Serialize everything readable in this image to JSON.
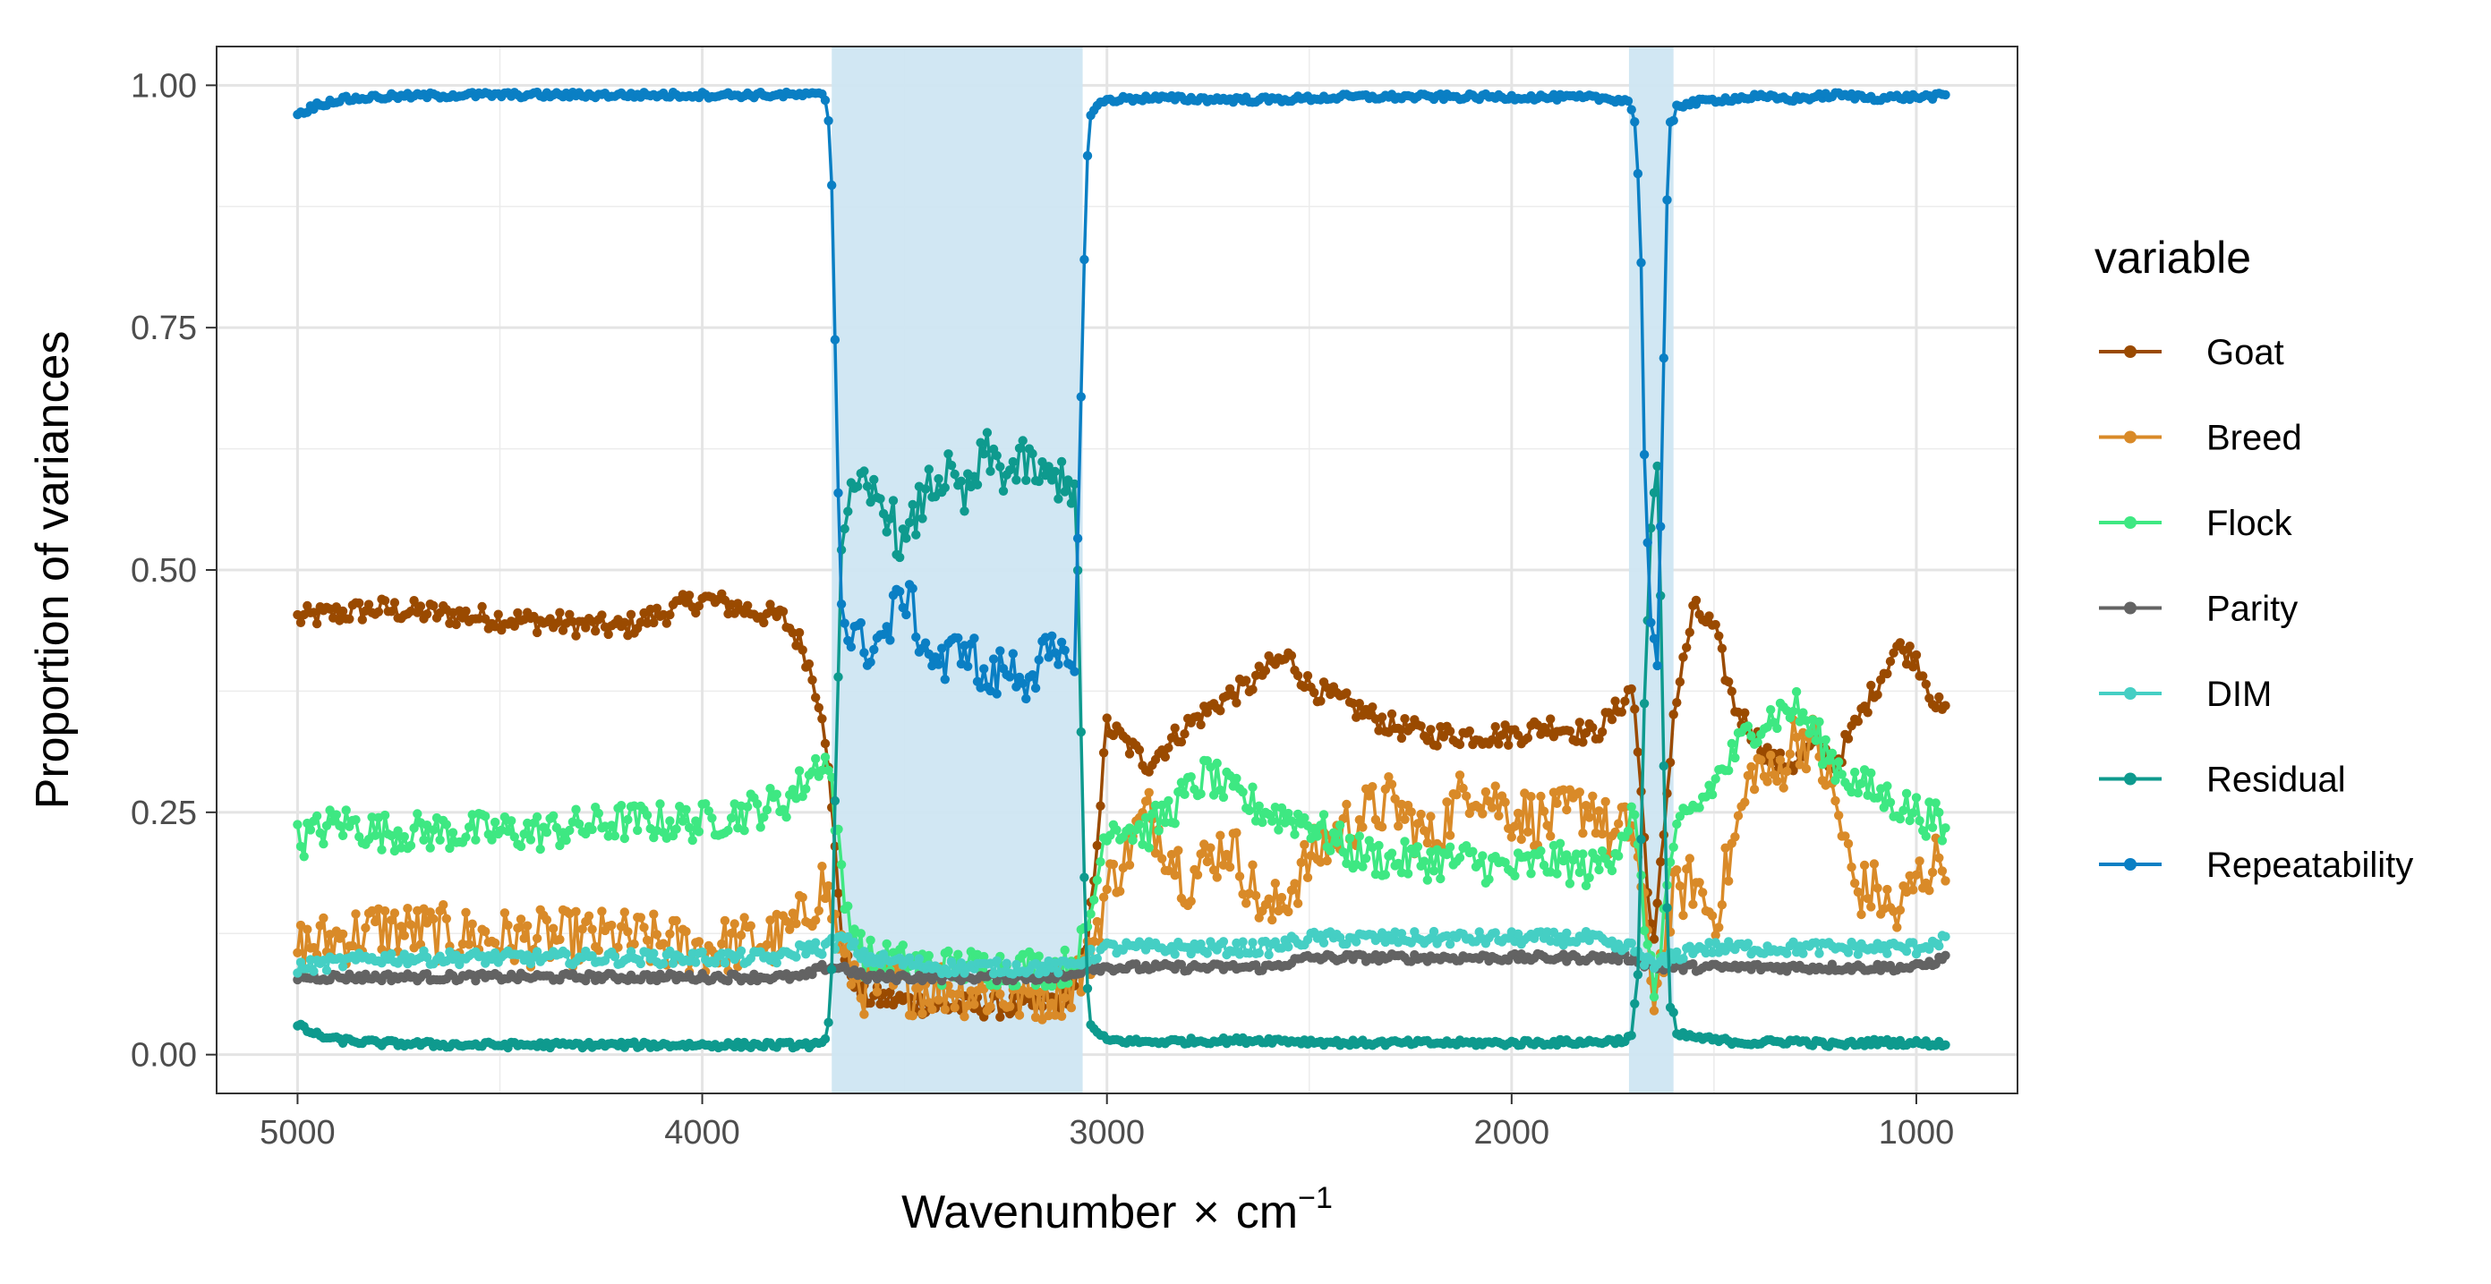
{
  "chart_data": {
    "type": "line",
    "title": "",
    "xlabel_main": "Wavenumber",
    "xlabel_times": "×",
    "xlabel_unit": "cm",
    "xlabel_sup": "−1",
    "ylabel": "Proportion of variances",
    "xlim": [
      5200,
      750
    ],
    "x_reversed": true,
    "ylim": [
      -0.04,
      1.04
    ],
    "x_ticks": [
      5000,
      4000,
      3000,
      2000,
      1000
    ],
    "x_tick_labels": [
      "5000",
      "4000",
      "3000",
      "2000",
      "1000"
    ],
    "y_ticks": [
      0,
      0.25,
      0.5,
      0.75,
      1.0
    ],
    "y_tick_labels": [
      "0.00",
      "0.25",
      "0.50",
      "0.75",
      "1.00"
    ],
    "grid": true,
    "legend_position": "right",
    "legend_title": "variable",
    "shaded_regions": [
      {
        "from": 3680,
        "to": 3060,
        "color": "#cfe6f2"
      },
      {
        "from": 1710,
        "to": 1600,
        "color": "#cfe6f2"
      }
    ],
    "x_range_data": [
      5000,
      926
    ],
    "series": [
      {
        "name": "Goat",
        "color": "#9a4a00",
        "x": [
          5000,
          4800,
          4500,
          4200,
          4000,
          3800,
          3750,
          3700,
          3650,
          3600,
          3400,
          3200,
          3100,
          3050,
          3000,
          2900,
          2800,
          2700,
          2650,
          2600,
          2550,
          2500,
          2400,
          2300,
          2200,
          2000,
          1900,
          1800,
          1750,
          1700,
          1650,
          1600,
          1550,
          1500,
          1450,
          1400,
          1350,
          1300,
          1250,
          1200,
          1100,
          1050,
          1000,
          950,
          926
        ],
        "values": [
          0.45,
          0.46,
          0.45,
          0.44,
          0.47,
          0.45,
          0.42,
          0.35,
          0.1,
          0.06,
          0.05,
          0.05,
          0.06,
          0.1,
          0.34,
          0.3,
          0.34,
          0.37,
          0.38,
          0.4,
          0.41,
          0.38,
          0.36,
          0.34,
          0.33,
          0.33,
          0.34,
          0.33,
          0.35,
          0.38,
          0.1,
          0.35,
          0.46,
          0.44,
          0.36,
          0.33,
          0.3,
          0.3,
          0.32,
          0.3,
          0.38,
          0.42,
          0.41,
          0.36,
          0.35
        ]
      },
      {
        "name": "Breed",
        "color": "#d98a28",
        "x": [
          5000,
          4800,
          4500,
          4200,
          4000,
          3800,
          3750,
          3700,
          3650,
          3600,
          3400,
          3200,
          3100,
          3050,
          3000,
          2900,
          2800,
          2700,
          2600,
          2500,
          2400,
          2300,
          2200,
          2100,
          2000,
          1900,
          1800,
          1750,
          1700,
          1650,
          1600,
          1550,
          1500,
          1450,
          1400,
          1350,
          1300,
          1250,
          1200,
          1150,
          1100,
          1050,
          1000,
          950,
          926
        ],
        "values": [
          0.11,
          0.13,
          0.12,
          0.12,
          0.11,
          0.12,
          0.14,
          0.18,
          0.1,
          0.07,
          0.07,
          0.06,
          0.07,
          0.09,
          0.17,
          0.25,
          0.18,
          0.22,
          0.14,
          0.2,
          0.24,
          0.26,
          0.22,
          0.28,
          0.25,
          0.24,
          0.26,
          0.22,
          0.24,
          0.06,
          0.16,
          0.18,
          0.14,
          0.22,
          0.3,
          0.28,
          0.33,
          0.32,
          0.26,
          0.17,
          0.17,
          0.14,
          0.18,
          0.2,
          0.21
        ]
      },
      {
        "name": "Flock",
        "color": "#3ee882",
        "x": [
          5000,
          4900,
          4800,
          4600,
          4400,
          4200,
          4000,
          3900,
          3800,
          3750,
          3700,
          3680,
          3650,
          3600,
          3400,
          3200,
          3100,
          3050,
          3000,
          2900,
          2800,
          2750,
          2700,
          2600,
          2500,
          2400,
          2300,
          2200,
          2100,
          2000,
          1900,
          1800,
          1750,
          1700,
          1650,
          1600,
          1550,
          1500,
          1450,
          1400,
          1350,
          1300,
          1250,
          1200,
          1150,
          1100,
          1050,
          1000,
          950,
          926
        ],
        "values": [
          0.22,
          0.24,
          0.23,
          0.23,
          0.23,
          0.24,
          0.24,
          0.25,
          0.26,
          0.28,
          0.31,
          0.28,
          0.16,
          0.1,
          0.09,
          0.09,
          0.09,
          0.12,
          0.24,
          0.23,
          0.27,
          0.29,
          0.27,
          0.25,
          0.24,
          0.21,
          0.2,
          0.2,
          0.2,
          0.19,
          0.2,
          0.19,
          0.21,
          0.25,
          0.06,
          0.22,
          0.25,
          0.28,
          0.31,
          0.34,
          0.35,
          0.36,
          0.33,
          0.3,
          0.28,
          0.27,
          0.26,
          0.25,
          0.24,
          0.22
        ]
      },
      {
        "name": "Parity",
        "color": "#636363",
        "x": [
          5000,
          4800,
          4600,
          4400,
          4200,
          4000,
          3900,
          3800,
          3750,
          3700,
          3650,
          3600,
          3400,
          3200,
          3100,
          3050,
          3000,
          2900,
          2800,
          2700,
          2600,
          2500,
          2400,
          2300,
          2200,
          2100,
          2000,
          1900,
          1800,
          1750,
          1700,
          1650,
          1600,
          1550,
          1500,
          1450,
          1400,
          1300,
          1200,
          1100,
          1000,
          926
        ],
        "values": [
          0.08,
          0.08,
          0.08,
          0.08,
          0.08,
          0.08,
          0.08,
          0.08,
          0.08,
          0.09,
          0.09,
          0.08,
          0.08,
          0.08,
          0.08,
          0.09,
          0.09,
          0.09,
          0.09,
          0.09,
          0.09,
          0.1,
          0.1,
          0.1,
          0.1,
          0.1,
          0.1,
          0.1,
          0.1,
          0.1,
          0.1,
          0.09,
          0.09,
          0.09,
          0.09,
          0.09,
          0.09,
          0.09,
          0.09,
          0.09,
          0.09,
          0.1
        ]
      },
      {
        "name": "DIM",
        "color": "#45cfc4",
        "x": [
          5000,
          4800,
          4600,
          4400,
          4200,
          4000,
          3900,
          3800,
          3750,
          3700,
          3650,
          3600,
          3400,
          3200,
          3100,
          3050,
          3000,
          2900,
          2800,
          2700,
          2600,
          2500,
          2400,
          2300,
          2200,
          2100,
          2000,
          1900,
          1800,
          1750,
          1700,
          1650,
          1600,
          1550,
          1500,
          1450,
          1400,
          1300,
          1200,
          1100,
          1000,
          926
        ],
        "values": [
          0.09,
          0.1,
          0.1,
          0.1,
          0.1,
          0.1,
          0.1,
          0.1,
          0.11,
          0.11,
          0.12,
          0.1,
          0.09,
          0.09,
          0.09,
          0.1,
          0.11,
          0.11,
          0.11,
          0.11,
          0.11,
          0.12,
          0.12,
          0.12,
          0.12,
          0.12,
          0.12,
          0.12,
          0.12,
          0.11,
          0.11,
          0.09,
          0.1,
          0.11,
          0.11,
          0.11,
          0.11,
          0.11,
          0.11,
          0.11,
          0.11,
          0.12
        ]
      },
      {
        "name": "Residual",
        "color": "#0e9a8e",
        "x": [
          5000,
          4950,
          4900,
          4800,
          4600,
          4400,
          4200,
          4000,
          3800,
          3700,
          3690,
          3680,
          3670,
          3660,
          3650,
          3600,
          3550,
          3500,
          3450,
          3400,
          3350,
          3300,
          3250,
          3200,
          3150,
          3100,
          3080,
          3070,
          3060,
          3050,
          3040,
          3020,
          3000,
          2900,
          2800,
          2600,
          2400,
          2200,
          2000,
          1800,
          1720,
          1700,
          1690,
          1680,
          1670,
          1660,
          1650,
          1640,
          1630,
          1620,
          1610,
          1600,
          1580,
          1500,
          1400,
          1300,
          1200,
          1100,
          1000,
          926
        ],
        "values": [
          0.03,
          0.02,
          0.015,
          0.012,
          0.01,
          0.01,
          0.01,
          0.01,
          0.01,
          0.01,
          0.02,
          0.1,
          0.3,
          0.48,
          0.56,
          0.58,
          0.57,
          0.52,
          0.58,
          0.6,
          0.57,
          0.62,
          0.6,
          0.61,
          0.59,
          0.6,
          0.58,
          0.45,
          0.25,
          0.08,
          0.03,
          0.02,
          0.015,
          0.013,
          0.014,
          0.015,
          0.012,
          0.012,
          0.012,
          0.013,
          0.015,
          0.02,
          0.05,
          0.2,
          0.4,
          0.52,
          0.58,
          0.6,
          0.45,
          0.2,
          0.05,
          0.02,
          0.02,
          0.015,
          0.012,
          0.014,
          0.01,
          0.013,
          0.012,
          0.011
        ]
      },
      {
        "name": "Repeatability",
        "color": "#0a7fc4",
        "x": [
          5000,
          4950,
          4900,
          4800,
          4600,
          4400,
          4200,
          4000,
          3800,
          3700,
          3690,
          3680,
          3670,
          3660,
          3650,
          3600,
          3550,
          3500,
          3450,
          3400,
          3350,
          3300,
          3250,
          3200,
          3150,
          3100,
          3080,
          3070,
          3060,
          3050,
          3040,
          3020,
          3000,
          2900,
          2800,
          2600,
          2400,
          2200,
          2000,
          1800,
          1720,
          1700,
          1690,
          1680,
          1670,
          1660,
          1650,
          1640,
          1630,
          1620,
          1610,
          1600,
          1580,
          1500,
          1400,
          1300,
          1200,
          1100,
          1000,
          926
        ],
        "values": [
          0.97,
          0.98,
          0.985,
          0.988,
          0.99,
          0.99,
          0.99,
          0.99,
          0.99,
          0.99,
          0.98,
          0.9,
          0.7,
          0.52,
          0.44,
          0.42,
          0.43,
          0.48,
          0.42,
          0.4,
          0.43,
          0.38,
          0.4,
          0.39,
          0.41,
          0.4,
          0.42,
          0.55,
          0.75,
          0.92,
          0.97,
          0.98,
          0.985,
          0.987,
          0.986,
          0.985,
          0.988,
          0.988,
          0.988,
          0.987,
          0.985,
          0.98,
          0.95,
          0.8,
          0.6,
          0.48,
          0.42,
          0.4,
          0.55,
          0.8,
          0.95,
          0.98,
          0.98,
          0.985,
          0.988,
          0.986,
          0.99,
          0.987,
          0.988,
          0.989
        ]
      }
    ]
  }
}
